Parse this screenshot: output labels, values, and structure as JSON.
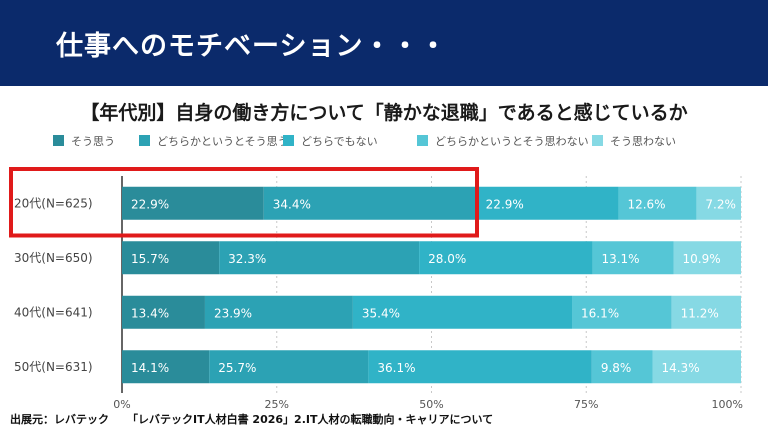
{
  "banner": {
    "title": "仕事へのモチベーション・・・"
  },
  "chart_data": {
    "type": "bar",
    "stacked": true,
    "orientation": "horizontal",
    "title": "【年代別】自身の働き方について「静かな退職」であると感じているか",
    "categories": [
      "20代(N=625)",
      "30代(N=650)",
      "40代(N=641)",
      "50代(N=631)"
    ],
    "series": [
      {
        "name": "そう思う",
        "color": "#2a8c9a",
        "values": [
          22.9,
          15.7,
          13.4,
          14.1
        ],
        "labels": [
          "22.9%",
          "15.7%",
          "13.4%",
          "14.1%"
        ]
      },
      {
        "name": "どちらかというとそう思う",
        "color": "#2ca2b4",
        "values": [
          34.4,
          32.3,
          23.9,
          25.7
        ],
        "labels": [
          "34.4%",
          "32.3%",
          "23.9%",
          "25.7%"
        ]
      },
      {
        "name": "どちらでもない",
        "color": "#30b3c7",
        "values": [
          22.9,
          28.0,
          35.4,
          36.1
        ],
        "labels": [
          "22.9%",
          "28.0%",
          "35.4%",
          "36.1%"
        ]
      },
      {
        "name": "どちらかというとそう思わない",
        "color": "#55c6d6",
        "values": [
          12.6,
          13.1,
          16.1,
          9.8
        ],
        "labels": [
          "12.6%",
          "13.1%",
          "16.1%",
          "9.8%"
        ]
      },
      {
        "name": "そう思わない",
        "color": "#86d9e4",
        "values": [
          7.2,
          10.9,
          11.2,
          14.3
        ],
        "labels": [
          "7.2%",
          "10.9%",
          "11.2%",
          "14.3%"
        ]
      }
    ],
    "xlim": [
      0,
      100
    ],
    "xticks": [
      "0%",
      "25%",
      "50%",
      "75%",
      "100%"
    ],
    "grid": true,
    "legend": "top",
    "highlight": {
      "category": "20代(N=625)",
      "color": "#e01a1a"
    }
  },
  "source": {
    "label": "出展元：レバテック",
    "text": "「レバテックIT人材白書 2026」2.IT人材の転職動向・キャリアについて"
  }
}
